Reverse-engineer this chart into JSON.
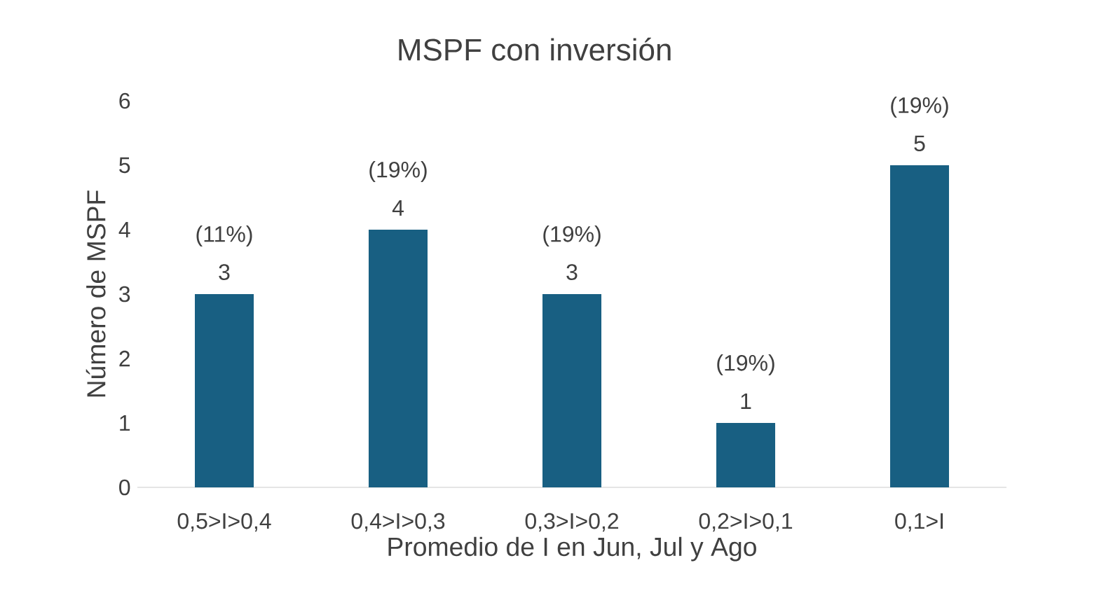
{
  "chart_data": {
    "type": "bar",
    "title": "MSPF con inversión",
    "xlabel": "Promedio de I en Jun, Jul y Ago",
    "ylabel": "Número de MSPF",
    "categories": [
      "0,5>I>0,4",
      "0,4>I>0,3",
      "0,3>I>0,2",
      "0,2>I>0,1",
      "0,1>I"
    ],
    "values": [
      3,
      4,
      3,
      1,
      5
    ],
    "color": "#185f82",
    "ylim": [
      0,
      6
    ],
    "yticks": [
      0,
      1,
      2,
      3,
      4,
      5,
      6
    ],
    "grid": false,
    "data_labels": true,
    "annotations": [
      {
        "text": "(11%)",
        "x": "0,5>I>0,4",
        "y": 3
      },
      {
        "text": "(19%)",
        "x": "0,4>I>0,3",
        "y": 4
      },
      {
        "text": "(19%)",
        "x": "0,3>I>0,2",
        "y": 3
      },
      {
        "text": "(19%)",
        "x": "0,2>I>0,1",
        "y": 1
      },
      {
        "text": "(19%)",
        "x": "0,1>I",
        "y": 5
      }
    ]
  }
}
